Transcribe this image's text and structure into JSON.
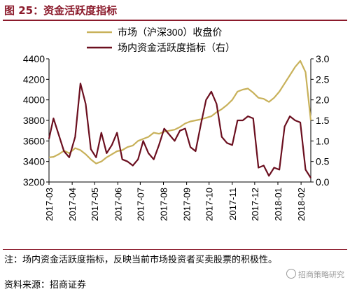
{
  "figure": {
    "title": "图 25：资金活跃度指标",
    "note": "注：场内资金活跃度指标，反映当前市场投资者买卖股票的积极性。",
    "source": "资料来源：招商证券",
    "watermark": "招商策略研究"
  },
  "chart_data": {
    "type": "line",
    "colors": {
      "market": "#c8b15a",
      "activity": "#6b0f1f",
      "axis": "#000000"
    },
    "legend_placement": "top-center",
    "grid": false,
    "x_ticks": [
      "2017-03",
      "2017-04",
      "2017-05",
      "2017-06",
      "2017-07",
      "2017-08",
      "2017-09",
      "2017-10",
      "2017-11",
      "2017-12",
      "2018-01",
      "2018-02"
    ],
    "x": [
      "2017-03-01",
      "2017-03-07",
      "2017-03-14",
      "2017-03-21",
      "2017-03-28",
      "2017-04-05",
      "2017-04-12",
      "2017-04-19",
      "2017-04-26",
      "2017-05-03",
      "2017-05-10",
      "2017-05-17",
      "2017-05-24",
      "2017-05-31",
      "2017-06-07",
      "2017-06-14",
      "2017-06-21",
      "2017-06-28",
      "2017-07-05",
      "2017-07-12",
      "2017-07-19",
      "2017-07-26",
      "2017-08-02",
      "2017-08-09",
      "2017-08-16",
      "2017-08-23",
      "2017-08-30",
      "2017-09-06",
      "2017-09-13",
      "2017-09-20",
      "2017-09-27",
      "2017-10-04",
      "2017-10-11",
      "2017-10-18",
      "2017-10-25",
      "2017-11-01",
      "2017-11-08",
      "2017-11-15",
      "2017-11-22",
      "2017-11-29",
      "2017-12-06",
      "2017-12-13",
      "2017-12-20",
      "2017-12-27",
      "2018-01-03",
      "2018-01-10",
      "2018-01-17",
      "2018-01-24",
      "2018-01-31",
      "2018-02-07",
      "2018-02-14"
    ],
    "y_left": {
      "label": "",
      "range": [
        3200,
        4400
      ],
      "ticks": [
        3200,
        3400,
        3600,
        3800,
        4000,
        4200,
        4400
      ]
    },
    "y_right": {
      "label": "",
      "range": [
        0.0,
        3.0
      ],
      "ticks": [
        "0.0",
        "0.5",
        "1.0",
        "1.5",
        "2.0",
        "2.5",
        "3.0"
      ]
    },
    "series": [
      {
        "name": "市场（沪深300）收盘价",
        "axis": "left",
        "values": [
          3440,
          3445,
          3470,
          3505,
          3480,
          3530,
          3510,
          3470,
          3420,
          3380,
          3400,
          3440,
          3470,
          3500,
          3510,
          3540,
          3555,
          3600,
          3620,
          3640,
          3680,
          3670,
          3690,
          3700,
          3710,
          3735,
          3770,
          3790,
          3800,
          3810,
          3825,
          3840,
          3880,
          3910,
          3950,
          4000,
          4080,
          4100,
          4110,
          4070,
          4020,
          4010,
          3980,
          4020,
          4080,
          4160,
          4240,
          4320,
          4380,
          4270,
          3800
        ]
      },
      {
        "name": "场内资金活跃度指标（右）",
        "axis": "right",
        "values": [
          1.05,
          1.55,
          1.15,
          0.75,
          0.6,
          1.1,
          2.4,
          1.9,
          0.8,
          0.6,
          1.2,
          0.7,
          0.9,
          1.2,
          0.55,
          0.5,
          0.4,
          0.55,
          1.0,
          0.7,
          0.55,
          0.9,
          1.3,
          1.15,
          1.0,
          1.25,
          1.3,
          0.85,
          0.75,
          1.4,
          2.0,
          2.2,
          1.9,
          1.1,
          0.95,
          0.9,
          1.5,
          1.5,
          1.6,
          1.55,
          0.35,
          0.4,
          0.15,
          0.35,
          0.3,
          1.35,
          1.6,
          1.5,
          1.45,
          0.3,
          0.1
        ]
      }
    ]
  }
}
